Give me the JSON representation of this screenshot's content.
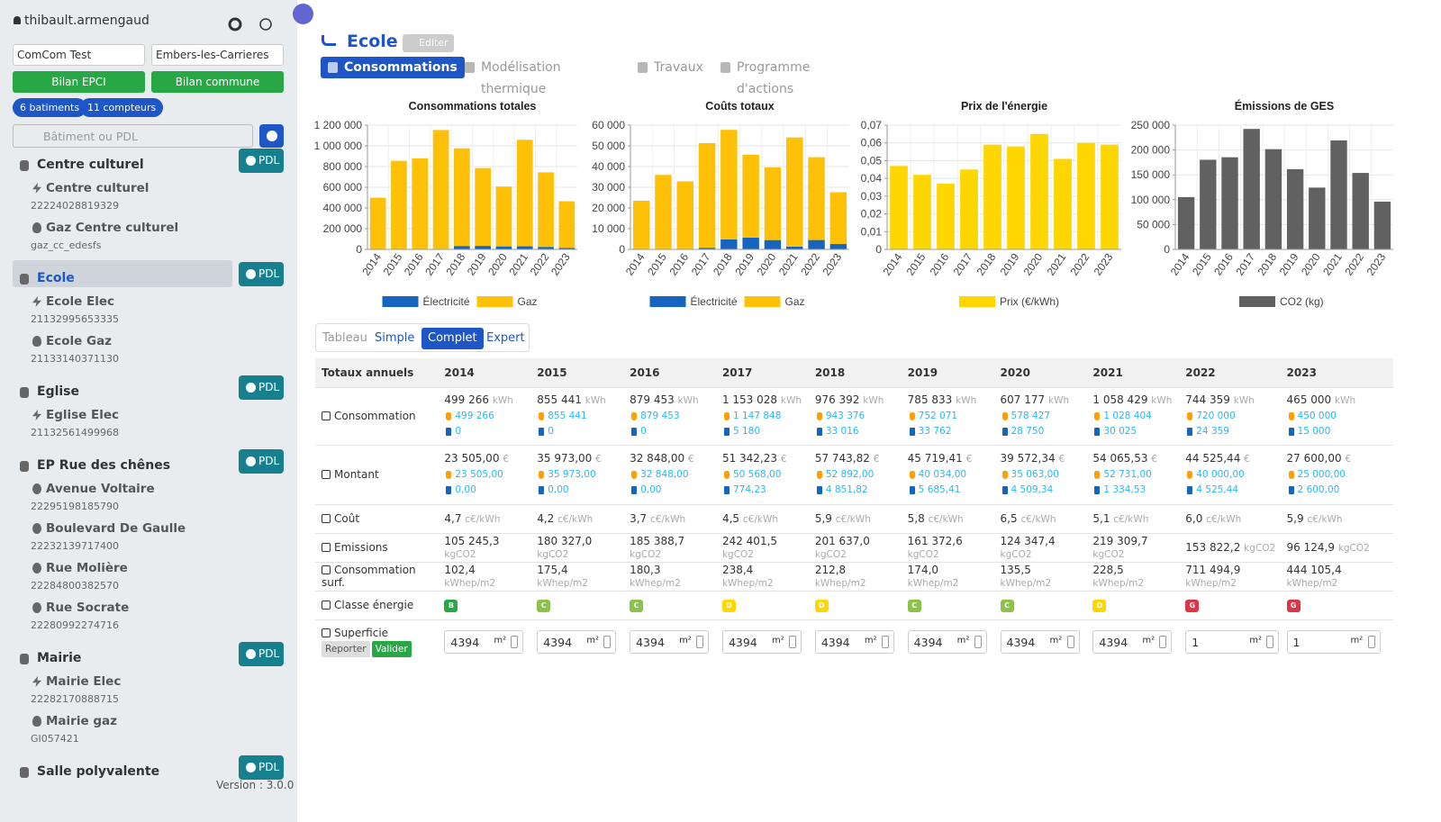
{
  "sidebar": {
    "user": "thibault.armengaud",
    "selects": [
      "ComCom Test",
      "Embers-les-Carrieres"
    ],
    "buttons": [
      "Bilan EPCI",
      "Bilan commune"
    ],
    "badges": [
      "6 batiments",
      "11 compteurs"
    ],
    "search_placeholder": "Bâtiment ou PDL",
    "pdl_label": "PDL",
    "buildings": [
      {
        "name": "Centre culturel",
        "active": false,
        "meters": [
          {
            "name": "Centre culturel",
            "id": "22224028819329",
            "kind": "elec"
          },
          {
            "name": "Gaz Centre culturel",
            "id": "gaz_cc_edesfs",
            "kind": "gaz"
          }
        ]
      },
      {
        "name": "Ecole",
        "active": true,
        "meters": [
          {
            "name": "Ecole Elec",
            "id": "21132995653335",
            "kind": "elec"
          },
          {
            "name": "Ecole Gaz",
            "id": "21133140371130",
            "kind": "gaz"
          }
        ]
      },
      {
        "name": "Eglise",
        "active": false,
        "meters": [
          {
            "name": "Eglise Elec",
            "id": "21132561499968",
            "kind": "elec"
          }
        ]
      },
      {
        "name": "EP Rue des chênes",
        "active": false,
        "meters": [
          {
            "name": "Avenue Voltaire",
            "id": "22295198185790",
            "kind": "light"
          },
          {
            "name": "Boulevard De Gaulle",
            "id": "22232139717400",
            "kind": "light"
          },
          {
            "name": "Rue Molière",
            "id": "22284800382570",
            "kind": "light"
          },
          {
            "name": "Rue Socrate",
            "id": "22280992274716",
            "kind": "light"
          }
        ]
      },
      {
        "name": "Mairie",
        "active": false,
        "meters": [
          {
            "name": "Mairie Elec",
            "id": "22282170888715",
            "kind": "elec"
          },
          {
            "name": "Mairie gaz",
            "id": "GI057421",
            "kind": "gaz"
          }
        ]
      },
      {
        "name": "Salle polyvalente",
        "active": false,
        "meters": []
      }
    ],
    "version": "Version : 3.0.0"
  },
  "header": {
    "title": "Ecole",
    "edit": "Editer",
    "tabs": [
      "Consommations",
      "Modélisation thermique",
      "Travaux",
      "Programme d'actions"
    ],
    "active_tab": 0
  },
  "chart_data": [
    {
      "type": "bar",
      "stacked": true,
      "title": "Consommations totales",
      "categories": [
        "2014",
        "2015",
        "2016",
        "2017",
        "2018",
        "2019",
        "2020",
        "2021",
        "2022",
        "2023"
      ],
      "series": [
        {
          "name": "Électricité",
          "color": "#1565c0",
          "values": [
            0,
            0,
            0,
            5180,
            33016,
            33762,
            28750,
            30025,
            24359,
            15000
          ]
        },
        {
          "name": "Gaz",
          "color": "#ffc107",
          "values": [
            499266,
            855441,
            879453,
            1147848,
            943376,
            752071,
            578427,
            1028404,
            720000,
            450000
          ]
        }
      ],
      "ylim": [
        0,
        1200000
      ],
      "yticks": [
        0,
        {
          "value": 200000,
          "label": "200 000"
        },
        {
          "value": 400000,
          "label": "400 000"
        },
        {
          "value": 600000,
          "label": "600 000"
        },
        {
          "value": 800000,
          "label": "800 000"
        },
        {
          "value": 1000000,
          "label": "1 000 000"
        },
        {
          "value": 1200000,
          "label": "1 200 000"
        }
      ],
      "grid": true
    },
    {
      "type": "bar",
      "stacked": true,
      "title": "Coûts totaux",
      "categories": [
        "2014",
        "2015",
        "2016",
        "2017",
        "2018",
        "2019",
        "2020",
        "2021",
        "2022",
        "2023"
      ],
      "series": [
        {
          "name": "Électricité",
          "color": "#1565c0",
          "values": [
            0,
            0,
            0,
            774.23,
            4851.82,
            5685.41,
            4509.34,
            1334.53,
            4525.44,
            2600
          ]
        },
        {
          "name": "Gaz",
          "color": "#ffc107",
          "values": [
            23505,
            35973,
            32848,
            50568,
            52892,
            40034,
            35063,
            52731,
            40000,
            25000
          ]
        }
      ],
      "ylim": [
        0,
        60000
      ],
      "yticks": [
        0,
        {
          "value": 10000,
          "label": "10 000"
        },
        {
          "value": 20000,
          "label": "20 000"
        },
        {
          "value": 30000,
          "label": "30 000"
        },
        {
          "value": 40000,
          "label": "40 000"
        },
        {
          "value": 50000,
          "label": "50 000"
        },
        {
          "value": 60000,
          "label": "60 000"
        }
      ],
      "grid": true
    },
    {
      "type": "bar",
      "stacked": false,
      "title": "Prix de l'énergie",
      "categories": [
        "2014",
        "2015",
        "2016",
        "2017",
        "2018",
        "2019",
        "2020",
        "2021",
        "2022",
        "2023"
      ],
      "series": [
        {
          "name": "Prix (€/kWh)",
          "color": "#ffd600",
          "values": [
            0.047,
            0.042,
            0.037,
            0.045,
            0.059,
            0.058,
            0.065,
            0.051,
            0.06,
            0.059
          ]
        }
      ],
      "ylim": [
        0,
        0.07
      ],
      "yticks": [
        0,
        {
          "value": 0.01,
          "label": "0,01"
        },
        {
          "value": 0.02,
          "label": "0,02"
        },
        {
          "value": 0.03,
          "label": "0,03"
        },
        {
          "value": 0.04,
          "label": "0,04"
        },
        {
          "value": 0.05,
          "label": "0,05"
        },
        {
          "value": 0.06,
          "label": "0,06"
        },
        {
          "value": 0.07,
          "label": "0,07"
        }
      ],
      "grid": true
    },
    {
      "type": "bar",
      "stacked": false,
      "title": "Émissions de GES",
      "categories": [
        "2014",
        "2015",
        "2016",
        "2017",
        "2018",
        "2019",
        "2020",
        "2021",
        "2022",
        "2023"
      ],
      "series": [
        {
          "name": "CO2 (kg)",
          "color": "#616161",
          "values": [
            105245.3,
            180327.0,
            185388.7,
            242401.5,
            201637.0,
            161372.6,
            124347.4,
            219309.7,
            153822.2,
            96124.9
          ]
        }
      ],
      "ylim": [
        0,
        250000
      ],
      "yticks": [
        0,
        {
          "value": 50000,
          "label": "50 000"
        },
        {
          "value": 100000,
          "label": "100 000"
        },
        {
          "value": 150000,
          "label": "150 000"
        },
        {
          "value": 200000,
          "label": "200 000"
        },
        {
          "value": 250000,
          "label": "250 000"
        }
      ],
      "grid": true
    }
  ],
  "views": {
    "items": [
      "Tableau",
      "Simple",
      "Complet",
      "Expert"
    ],
    "active": 2
  },
  "table": {
    "header": "Totaux annuels",
    "years": [
      "2014",
      "2015",
      "2016",
      "2017",
      "2018",
      "2019",
      "2020",
      "2021",
      "2022",
      "2023"
    ],
    "consommation": {
      "label": "Consommation",
      "unit": "kWh",
      "cells": [
        [
          "499 266",
          "499 266",
          "0"
        ],
        [
          "855 441",
          "855 441",
          "0"
        ],
        [
          "879 453",
          "879 453",
          "0"
        ],
        [
          "1 153 028",
          "1 147 848",
          "5 180"
        ],
        [
          "976 392",
          "943 376",
          "33 016"
        ],
        [
          "785 833",
          "752 071",
          "33 762"
        ],
        [
          "607 177",
          "578 427",
          "28 750"
        ],
        [
          "1 058 429",
          "1 028 404",
          "30 025"
        ],
        [
          "744 359",
          "720 000",
          "24 359"
        ],
        [
          "465 000",
          "450 000",
          "15 000"
        ]
      ]
    },
    "montant": {
      "label": "Montant",
      "unit": "€",
      "cells": [
        [
          "23 505,00",
          "23 505,00",
          "0,00"
        ],
        [
          "35 973,00",
          "35 973,00",
          "0,00"
        ],
        [
          "32 848,00",
          "32 848,00",
          "0,00"
        ],
        [
          "51 342,23",
          "50 568,00",
          "774,23"
        ],
        [
          "57 743,82",
          "52 892,00",
          "4 851,82"
        ],
        [
          "45 719,41",
          "40 034,00",
          "5 685,41"
        ],
        [
          "39 572,34",
          "35 063,00",
          "4 509,34"
        ],
        [
          "54 065,53",
          "52 731,00",
          "1 334,53"
        ],
        [
          "44 525,44",
          "40 000,00",
          "4 525,44"
        ],
        [
          "27 600,00",
          "25 000,00",
          "2 600,00"
        ]
      ]
    },
    "cout": {
      "label": "Coût",
      "unit": "c€/kWh",
      "cells": [
        "4,7",
        "4,2",
        "3,7",
        "4,5",
        "5,9",
        "5,8",
        "6,5",
        "5,1",
        "6,0",
        "5,9"
      ]
    },
    "emissions": {
      "label": "Emissions",
      "unit": "kgCO2",
      "cells": [
        "105 245,3",
        "180 327,0",
        "185 388,7",
        "242 401,5",
        "201 637,0",
        "161 372,6",
        "124 347,4",
        "219 309,7",
        "153 822,2",
        "96 124,9"
      ]
    },
    "surface": {
      "label": "Consommation surf.",
      "unit": "kWhep/m2",
      "cells": [
        "102,4",
        "175,4",
        "180,3",
        "238,4",
        "212,8",
        "174,0",
        "135,5",
        "228,5",
        "711 494,9",
        "444 105,4"
      ]
    },
    "classe": {
      "label": "Classe énergie",
      "cells": [
        "B",
        "C",
        "C",
        "D",
        "D",
        "C",
        "C",
        "D",
        "G",
        "G"
      ]
    },
    "superficie": {
      "label": "Superficie",
      "unit": "m²",
      "buttons": [
        "Reporter",
        "Valider"
      ],
      "cells": [
        "4394",
        "4394",
        "4394",
        "4394",
        "4394",
        "4394",
        "4394",
        "4394",
        "1",
        "1"
      ]
    }
  }
}
